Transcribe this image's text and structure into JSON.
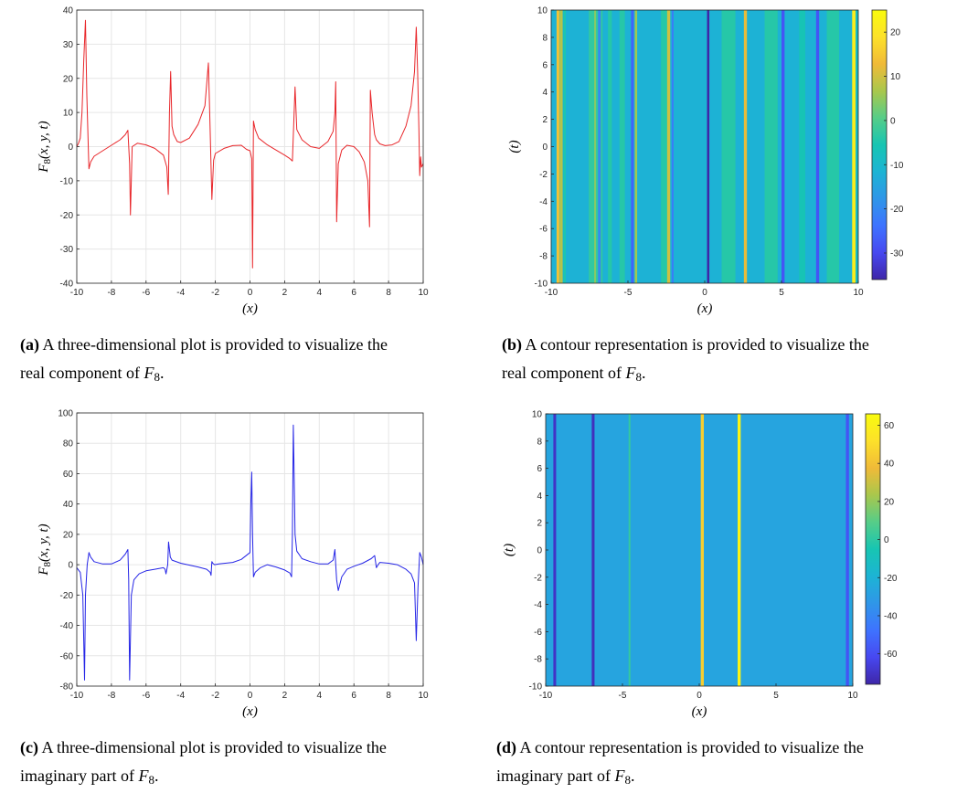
{
  "colors": {
    "real_line": "#e8262a",
    "imag_line": "#2525e6",
    "grid": "#e6e6e6",
    "axis": "#262626",
    "colormap": [
      "#3e26a8",
      "#4748f0",
      "#3e73ff",
      "#2f96e8",
      "#1cb4d4",
      "#17c5b2",
      "#56cd88",
      "#a9c74c",
      "#f0ba38",
      "#fde12a",
      "#f9fb0e"
    ]
  },
  "captions": [
    {
      "label": "(a)",
      "line1": "A three-dimensional plot is provided to visualize the",
      "line2_pre": "real component of",
      "symbol": "F",
      "sub": "8",
      "post": "."
    },
    {
      "label": "(b)",
      "line1": "A contour representation is provided to visualize the",
      "line2_pre": "real component of",
      "symbol": "F",
      "sub": "8",
      "post": "."
    },
    {
      "label": "(c)",
      "line1": "A three-dimensional plot is provided to visualize the",
      "line2_pre": "imaginary part of",
      "symbol": "F",
      "sub": "8",
      "post": "."
    },
    {
      "label": "(d)",
      "line1": "A contour representation is provided to visualize the",
      "line2_pre": "imaginary part of",
      "symbol": "F",
      "sub": "8",
      "post": "."
    }
  ],
  "chart_data": [
    {
      "id": "a",
      "type": "line",
      "xlabel": "(x)",
      "ylabel": "F8(x, y, t)",
      "xlim": [
        -10,
        10
      ],
      "ylim": [
        -40,
        40
      ],
      "xticks": [
        -10,
        -8,
        -6,
        -4,
        -2,
        0,
        2,
        4,
        6,
        8,
        10
      ],
      "yticks": [
        -40,
        -30,
        -20,
        -10,
        0,
        10,
        20,
        30,
        40
      ],
      "grid": true,
      "series": [
        {
          "name": "Re F8",
          "x": [
            -10,
            -9.9,
            -9.8,
            -9.7,
            -9.6,
            -9.5,
            -9.42,
            -9.32,
            -9.3,
            -9.2,
            -9,
            -8.5,
            -8,
            -7.5,
            -7.2,
            -7.05,
            -6.95,
            -6.9,
            -6.8,
            -6.5,
            -6,
            -5.5,
            -5,
            -4.8,
            -4.72,
            -4.65,
            -4.58,
            -4.5,
            -4.4,
            -4.2,
            -4,
            -3.5,
            -3,
            -2.6,
            -2.4,
            -2.3,
            -2.2,
            -2.1,
            -2,
            -1.5,
            -1,
            -0.5,
            -0.2,
            0,
            0.1,
            0.15,
            0.2,
            0.3,
            0.5,
            1,
            1.5,
            2,
            2.3,
            2.45,
            2.55,
            2.6,
            2.7,
            3,
            3.5,
            4,
            4.5,
            4.8,
            4.9,
            4.95,
            5,
            5.1,
            5.3,
            5.6,
            6,
            6.3,
            6.6,
            6.8,
            6.9,
            6.95,
            7.05,
            7.15,
            7.2,
            7.3,
            7.5,
            7.8,
            8.2,
            8.6,
            9,
            9.3,
            9.5,
            9.6,
            9.68,
            9.75,
            9.8,
            9.85,
            9.9,
            10
          ],
          "values": [
            0,
            1,
            2.5,
            10,
            25,
            37,
            15,
            -3,
            -6.5,
            -4.5,
            -2.8,
            -1.2,
            0.4,
            2,
            3.5,
            4.8,
            -5,
            -20,
            0,
            1,
            0.5,
            -0.5,
            -2.5,
            -6,
            -14,
            10,
            22,
            6,
            3.5,
            1.5,
            1.2,
            2.5,
            6.5,
            12,
            24.5,
            5,
            -15.5,
            -4,
            -2,
            -0.5,
            0.3,
            0.4,
            -0.8,
            -1.2,
            -3.5,
            -35.5,
            7.5,
            5,
            2.5,
            0.5,
            -1,
            -2.5,
            -3.5,
            -4.2,
            10,
            17.5,
            5,
            2,
            0,
            -0.5,
            1.5,
            4.5,
            10,
            19,
            -22,
            -5,
            -1,
            0.4,
            0,
            -1.5,
            -4.5,
            -10,
            -23.5,
            16.5,
            10,
            5.5,
            3.5,
            2,
            0.8,
            0.3,
            0.5,
            1.5,
            6,
            12,
            22,
            35,
            22,
            5,
            -8.5,
            -3,
            -6,
            -5
          ]
        }
      ]
    },
    {
      "id": "b",
      "type": "heatmap",
      "xlabel": "(x)",
      "ylabel": "(t)",
      "xlim": [
        -10,
        10
      ],
      "ylim": [
        -10,
        10
      ],
      "xticks": [
        -10,
        -5,
        0,
        5,
        10
      ],
      "yticks": [
        -10,
        -8,
        -6,
        -4,
        -2,
        0,
        2,
        4,
        6,
        8,
        10
      ],
      "colorbar": {
        "min": -36,
        "max": 25,
        "ticks": [
          20,
          10,
          0,
          -10,
          -20,
          -30
        ]
      },
      "background_value": -12,
      "bands": [
        {
          "x": -9.65,
          "w": 0.18,
          "v": 14
        },
        {
          "x": -9.45,
          "w": 0.2,
          "v": 8
        },
        {
          "x": -9.2,
          "w": 0.15,
          "v": -5
        },
        {
          "x": -7.55,
          "w": 0.9,
          "v": -3
        },
        {
          "x": -7.2,
          "w": 0.12,
          "v": 4
        },
        {
          "x": -6.95,
          "w": 0.18,
          "v": -20
        },
        {
          "x": -6.3,
          "w": 0.25,
          "v": -4
        },
        {
          "x": -5.55,
          "w": 0.35,
          "v": -4
        },
        {
          "x": -4.8,
          "w": 0.18,
          "v": -26
        },
        {
          "x": -4.55,
          "w": 0.15,
          "v": 6
        },
        {
          "x": -2.85,
          "w": 0.55,
          "v": -4
        },
        {
          "x": -2.45,
          "w": 0.2,
          "v": 10
        },
        {
          "x": -2.15,
          "w": 0.12,
          "v": -22
        },
        {
          "x": 0.15,
          "w": 0.15,
          "v": -36
        },
        {
          "x": 1.1,
          "w": 0.9,
          "v": -4
        },
        {
          "x": 2.55,
          "w": 0.2,
          "v": 12
        },
        {
          "x": 3.9,
          "w": 0.85,
          "v": -4
        },
        {
          "x": 5.0,
          "w": 0.2,
          "v": -28
        },
        {
          "x": 6.15,
          "w": 0.4,
          "v": -6
        },
        {
          "x": 7.25,
          "w": 0.2,
          "v": -28
        },
        {
          "x": 7.95,
          "w": 0.8,
          "v": -4
        },
        {
          "x": 9.6,
          "w": 0.22,
          "v": 22
        },
        {
          "x": 9.85,
          "w": 0.15,
          "v": -8
        }
      ]
    },
    {
      "id": "c",
      "type": "line",
      "xlabel": "(x)",
      "ylabel": "F8(x, y, t)",
      "xlim": [
        -10,
        10
      ],
      "ylim": [
        -80,
        100
      ],
      "xticks": [
        -10,
        -8,
        -6,
        -4,
        -2,
        0,
        2,
        4,
        6,
        8,
        10
      ],
      "yticks": [
        -80,
        -60,
        -40,
        -20,
        0,
        20,
        40,
        60,
        80,
        100
      ],
      "grid": true,
      "series": [
        {
          "name": "Im F8",
          "x": [
            -10,
            -9.8,
            -9.65,
            -9.55,
            -9.5,
            -9.4,
            -9.3,
            -9.2,
            -9,
            -8.5,
            -8,
            -7.5,
            -7.2,
            -7.05,
            -7,
            -6.95,
            -6.85,
            -6.7,
            -6.4,
            -6,
            -5.5,
            -5,
            -4.9,
            -4.85,
            -4.75,
            -4.7,
            -4.65,
            -4.6,
            -4.5,
            -4,
            -3,
            -2.5,
            -2.3,
            -2.25,
            -2.2,
            -2.15,
            -2.05,
            -1.8,
            -1,
            -0.5,
            0,
            0.05,
            0.1,
            0.15,
            0.2,
            0.3,
            0.6,
            1,
            1.5,
            2,
            2.3,
            2.4,
            2.45,
            2.5,
            2.55,
            2.6,
            2.7,
            3,
            3.5,
            4,
            4.5,
            4.8,
            4.9,
            4.95,
            5,
            5.1,
            5.3,
            5.6,
            6,
            6.5,
            7,
            7.2,
            7.3,
            7.4,
            7.5,
            8,
            8.5,
            9,
            9.3,
            9.5,
            9.6,
            9.7,
            9.8,
            9.9,
            10
          ],
          "values": [
            -2,
            -5,
            -20,
            -76,
            -20,
            0,
            8,
            5,
            2,
            0.5,
            0.5,
            3,
            7,
            10,
            -10,
            -76,
            -20,
            -10,
            -6,
            -4,
            -3,
            -2,
            -3,
            -6,
            0,
            15,
            10,
            5,
            3,
            1,
            -1.5,
            -3,
            -5,
            -7,
            2,
            1,
            0,
            0.5,
            1.5,
            3.5,
            8,
            40,
            61,
            20,
            -8,
            -5,
            -2,
            0,
            -1.5,
            -3.5,
            -5.5,
            -8,
            20,
            92,
            60,
            20,
            9,
            4,
            2,
            0.5,
            0.5,
            3,
            10,
            0,
            -10,
            -17,
            -8,
            -3,
            -1,
            1,
            4,
            6,
            -2,
            0,
            1.5,
            1,
            0,
            -3,
            -6,
            -12,
            -50,
            -15,
            8,
            5,
            0
          ]
        }
      ]
    },
    {
      "id": "d",
      "type": "heatmap",
      "xlabel": "(x)",
      "ylabel": "(t)",
      "xlim": [
        -10,
        10
      ],
      "ylim": [
        -10,
        10
      ],
      "xticks": [
        -10,
        -5,
        0,
        5,
        10
      ],
      "yticks": [
        -10,
        -8,
        -6,
        -4,
        -2,
        0,
        2,
        4,
        6,
        8,
        10
      ],
      "colorbar": {
        "min": -76,
        "max": 66,
        "ticks": [
          60,
          40,
          20,
          0,
          -20,
          -40,
          -60
        ]
      },
      "background_value": -27,
      "bands": [
        {
          "x": -9.5,
          "w": 0.18,
          "v": -70
        },
        {
          "x": -7.0,
          "w": 0.18,
          "v": -72
        },
        {
          "x": -4.6,
          "w": 0.12,
          "v": 2
        },
        {
          "x": 0.1,
          "w": 0.2,
          "v": 45
        },
        {
          "x": 2.5,
          "w": 0.2,
          "v": 62
        },
        {
          "x": 9.55,
          "w": 0.2,
          "v": -58
        }
      ]
    }
  ]
}
